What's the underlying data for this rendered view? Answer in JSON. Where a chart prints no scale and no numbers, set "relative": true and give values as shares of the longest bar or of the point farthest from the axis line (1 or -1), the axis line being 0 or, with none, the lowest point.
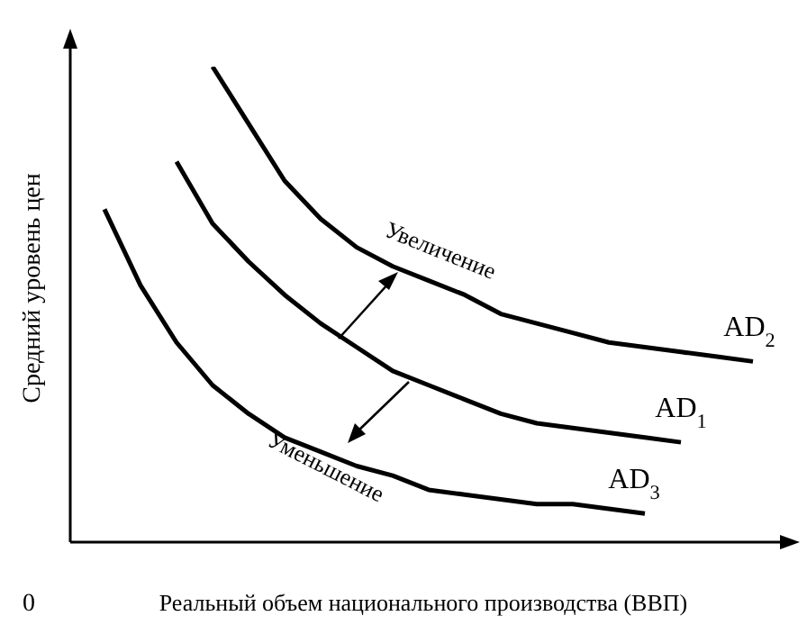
{
  "chart_data": {
    "type": "line",
    "relative": true,
    "xlabel": "Реальный объем национального производства (ВВП)",
    "ylabel": "Средний уровень цен",
    "categories": [
      null,
      null,
      null,
      null,
      null,
      null,
      null,
      null,
      null,
      null,
      null,
      null,
      null,
      null,
      null,
      null,
      null,
      null,
      null
    ],
    "series": [
      {
        "name": "AD$_{2}$",
        "color": "#000000",
        "values": [
          null,
          null,
          null,
          1.0,
          0.88,
          0.76,
          0.68,
          0.62,
          0.58,
          0.55,
          0.52,
          0.48,
          0.46,
          0.44,
          0.42,
          0.41,
          0.4,
          0.39,
          0.38
        ]
      },
      {
        "name": "AD$_{1}$",
        "color": "#000000",
        "values": [
          null,
          null,
          0.8,
          0.67,
          0.59,
          0.52,
          0.46,
          0.41,
          0.36,
          0.33,
          0.3,
          0.27,
          0.25,
          0.24,
          0.23,
          0.22,
          0.21,
          null,
          null
        ]
      },
      {
        "name": "AD$_{3}$",
        "color": "#000000",
        "values": [
          0.7,
          0.54,
          0.42,
          0.33,
          0.27,
          0.22,
          0.19,
          0.16,
          0.14,
          0.11,
          0.1,
          0.09,
          0.08,
          0.08,
          0.07,
          0.06,
          null,
          null,
          null
        ]
      }
    ],
    "annotations": [
      "Увеличение",
      "Уменьшение",
      "0"
    ]
  }
}
